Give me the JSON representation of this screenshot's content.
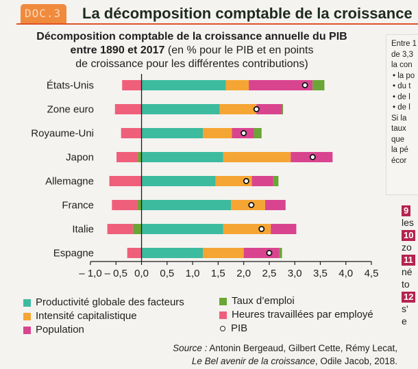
{
  "header": {
    "doc_tag": "DOC.3",
    "title": "La décomposition comptable de la croissance"
  },
  "chart_title": {
    "bold_part_1": "Décomposition comptable de la croissance annuelle du PIB",
    "bold_part_2": "entre 1890 et 2017",
    "normal_part_2": " (en % pour le PIB et en points",
    "line_3": "de croissance pour les différentes contributions)"
  },
  "colors": {
    "productivite": "#3dbb9f",
    "intensite": "#f5a533",
    "population": "#d9448f",
    "taux_emploi": "#6aa636",
    "heures": "#ef5f7a",
    "pib_marker": "#ffffff"
  },
  "chart_data": {
    "type": "bar",
    "orientation": "horizontal",
    "stacked": true,
    "title": "Décomposition comptable de la croissance annuelle du PIB entre 1890 et 2017 (en % pour le PIB et en points de croissance pour les différentes contributions)",
    "xlabel": "",
    "ylabel": "",
    "xlim": [
      -1.0,
      4.5
    ],
    "xticks": [
      -1.0,
      -0.5,
      0.0,
      0.5,
      1.0,
      1.5,
      2.0,
      2.5,
      3.0,
      3.5,
      4.0,
      4.5
    ],
    "xtick_labels": [
      "– 1,0",
      "– 0,5",
      "0,0",
      "0,5",
      "1,0",
      "1,5",
      "2,0",
      "2,5",
      "3,0",
      "3,5",
      "4,0",
      "4,5"
    ],
    "grid": false,
    "categories": [
      "États-Unis",
      "Zone euro",
      "Royaume-Uni",
      "Japon",
      "Allemagne",
      "France",
      "Italie",
      "Espagne"
    ],
    "series": [
      {
        "key": "productivite",
        "name": "Productivité globale des facteurs",
        "values": [
          1.65,
          1.53,
          1.2,
          1.6,
          1.45,
          1.75,
          1.6,
          1.2
        ]
      },
      {
        "key": "intensite",
        "name": "Intensité capitalistique",
        "values": [
          0.45,
          0.72,
          0.57,
          1.32,
          0.71,
          0.67,
          0.93,
          0.8
        ]
      },
      {
        "key": "population",
        "name": "Population",
        "values": [
          1.25,
          0.5,
          0.43,
          0.82,
          0.42,
          0.4,
          0.5,
          0.7
        ]
      },
      {
        "key": "taux_emploi",
        "name": "Taux d’emploi",
        "values": [
          0.23,
          0.02,
          0.15,
          -0.07,
          0.1,
          -0.08,
          -0.17,
          0.05
        ]
      },
      {
        "key": "heures",
        "name": "Heures travaillées par employé",
        "values": [
          -0.38,
          -0.52,
          -0.4,
          -0.42,
          -0.63,
          -0.5,
          -0.5,
          -0.28
        ]
      }
    ],
    "pib": {
      "name": "PIB",
      "values": [
        3.2,
        2.25,
        2.0,
        3.35,
        2.05,
        2.15,
        2.35,
        2.5
      ]
    },
    "legend_position": "bottom",
    "source": "Antonin Bergeaud, Gilbert Cette, Rémy Lecat, Le Bel avenir de la croissance, Odile Jacob, 2018."
  },
  "legend": {
    "productivite": "Productivité globale des facteurs",
    "intensite": "Intensité capitalistique",
    "population": "Population",
    "taux_emploi": "Taux d’emploi",
    "heures": "Heures travaillées par employé",
    "pib": "PIB"
  },
  "source": {
    "label": "Source :",
    "authors": " Antonin Bergeaud, Gilbert Cette, Rémy Lecat,",
    "book": "Le Bel avenir de la croissance",
    "publisher": ", Odile Jacob, 2018."
  },
  "side_text": {
    "lines": [
      "Entre 1",
      "de 3,3",
      "la con",
      "• la po",
      "• du t",
      "• de l",
      "• de l",
      "Si la",
      "taux",
      "que",
      "la pé",
      "écor"
    ]
  },
  "questions": {
    "items": [
      {
        "num": "9",
        "text": "les"
      },
      {
        "num": "10",
        "text": "zo"
      },
      {
        "num": "11",
        "text": "né"
      },
      {
        "num": "",
        "text": "to"
      },
      {
        "num": "12",
        "text": "s'"
      },
      {
        "num": "",
        "text": "e"
      }
    ]
  }
}
